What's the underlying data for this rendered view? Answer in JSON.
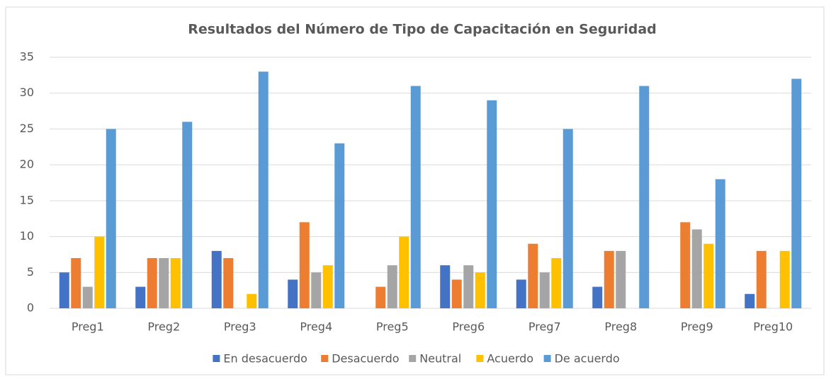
{
  "chart_data": {
    "type": "bar",
    "title": "Resultados del Número de Tipo de Capacitación en Seguridad",
    "categories": [
      "Preg1",
      "Preg2",
      "Preg3",
      "Preg4",
      "Preg5",
      "Preg6",
      "Preg7",
      "Preg8",
      "Preg9",
      "Preg10"
    ],
    "series": [
      {
        "name": "En desacuerdo",
        "color": "#4472c4",
        "values": [
          5,
          3,
          8,
          4,
          0,
          6,
          4,
          3,
          0,
          2
        ]
      },
      {
        "name": "Desacuerdo",
        "color": "#ed7d31",
        "values": [
          7,
          7,
          7,
          12,
          3,
          4,
          9,
          8,
          12,
          8
        ]
      },
      {
        "name": "Neutral",
        "color": "#a5a5a5",
        "values": [
          3,
          7,
          0,
          5,
          6,
          6,
          5,
          8,
          11,
          0
        ]
      },
      {
        "name": "Acuerdo",
        "color": "#ffc000",
        "values": [
          10,
          7,
          2,
          6,
          10,
          5,
          7,
          0,
          9,
          8
        ]
      },
      {
        "name": "De acuerdo",
        "color": "#5b9bd5",
        "values": [
          25,
          26,
          33,
          23,
          31,
          29,
          25,
          31,
          18,
          32
        ]
      }
    ],
    "ylim": [
      0,
      35
    ],
    "yticks": [
      0,
      5,
      10,
      15,
      20,
      25,
      30,
      35
    ],
    "grid": true,
    "legend": "bottom"
  }
}
